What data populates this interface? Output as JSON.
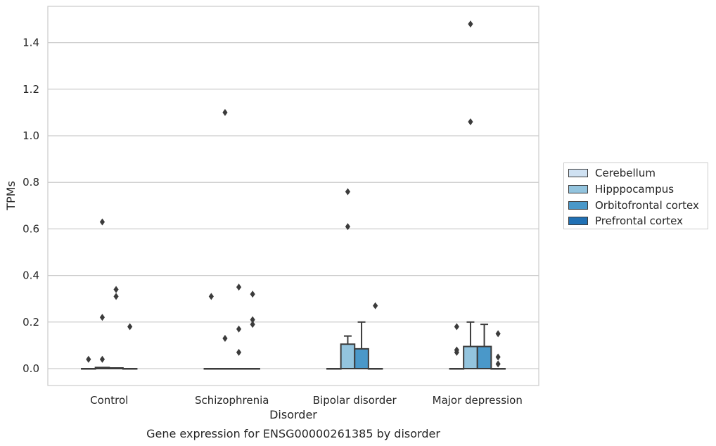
{
  "chart_data": {
    "type": "box",
    "title": "Gene expression for ENSG00000261385 by disorder",
    "xlabel": "Disorder",
    "ylabel": "TPMs",
    "ylim": [
      -0.075,
      1.56
    ],
    "yticks": [
      "0.0",
      "0.2",
      "0.4",
      "0.6",
      "0.8",
      "1.0",
      "1.2",
      "1.4"
    ],
    "categories": [
      "Control",
      "Schizophrenia",
      "Bipolar disorder",
      "Major depression"
    ],
    "grid": "horizontal",
    "legend_position": "right",
    "series": [
      {
        "name": "Cerebellum",
        "color": "#cfe1f2",
        "boxes": [
          {
            "q1": 0,
            "median": 0,
            "q3": 0,
            "whisker_low": 0,
            "whisker_high": 0,
            "outliers": [
              0.04
            ]
          },
          {
            "q1": 0,
            "median": 0,
            "q3": 0,
            "whisker_low": 0,
            "whisker_high": 0,
            "outliers": [
              0.31
            ]
          },
          {
            "q1": 0,
            "median": 0,
            "q3": 0,
            "whisker_low": 0,
            "whisker_high": 0,
            "outliers": []
          },
          {
            "q1": 0,
            "median": 0,
            "q3": 0,
            "whisker_low": 0,
            "whisker_high": 0,
            "outliers": [
              0.18,
              0.08,
              0.07
            ]
          }
        ]
      },
      {
        "name": "Hipppocampus",
        "color": "#93c4de",
        "boxes": [
          {
            "q1": 0,
            "median": 0,
            "q3": 0.005,
            "whisker_low": 0,
            "whisker_high": 0.005,
            "outliers": [
              0.63,
              0.22,
              0.04
            ]
          },
          {
            "q1": 0,
            "median": 0,
            "q3": 0,
            "whisker_low": 0,
            "whisker_high": 0,
            "outliers": [
              1.1,
              0.13
            ]
          },
          {
            "q1": 0,
            "median": 0,
            "q3": 0.105,
            "whisker_low": 0,
            "whisker_high": 0.14,
            "outliers": [
              0.76,
              0.61
            ]
          },
          {
            "q1": 0,
            "median": 0,
            "q3": 0.095,
            "whisker_low": 0,
            "whisker_high": 0.2,
            "outliers": [
              1.48,
              1.06
            ]
          }
        ]
      },
      {
        "name": "Orbitofrontal cortex",
        "color": "#4a98c9",
        "boxes": [
          {
            "q1": 0,
            "median": 0,
            "q3": 0.003,
            "whisker_low": 0,
            "whisker_high": 0.003,
            "outliers": [
              0.34,
              0.31
            ]
          },
          {
            "q1": 0,
            "median": 0,
            "q3": 0,
            "whisker_low": 0,
            "whisker_high": 0,
            "outliers": [
              0.35,
              0.17,
              0.07
            ]
          },
          {
            "q1": 0,
            "median": 0,
            "q3": 0.085,
            "whisker_low": 0,
            "whisker_high": 0.2,
            "outliers": []
          },
          {
            "q1": 0,
            "median": 0,
            "q3": 0.095,
            "whisker_low": 0,
            "whisker_high": 0.19,
            "outliers": []
          }
        ]
      },
      {
        "name": "Prefrontal cortex",
        "color": "#2070b4",
        "boxes": [
          {
            "q1": 0,
            "median": 0,
            "q3": 0,
            "whisker_low": 0,
            "whisker_high": 0,
            "outliers": [
              0.18
            ]
          },
          {
            "q1": 0,
            "median": 0,
            "q3": 0,
            "whisker_low": 0,
            "whisker_high": 0,
            "outliers": [
              0.32,
              0.21,
              0.19
            ]
          },
          {
            "q1": 0,
            "median": 0,
            "q3": 0,
            "whisker_low": 0,
            "whisker_high": 0,
            "outliers": [
              0.27
            ]
          },
          {
            "q1": 0,
            "median": 0,
            "q3": 0,
            "whisker_low": 0,
            "whisker_high": 0,
            "outliers": [
              0.15,
              0.05,
              0.02
            ]
          }
        ]
      }
    ]
  }
}
